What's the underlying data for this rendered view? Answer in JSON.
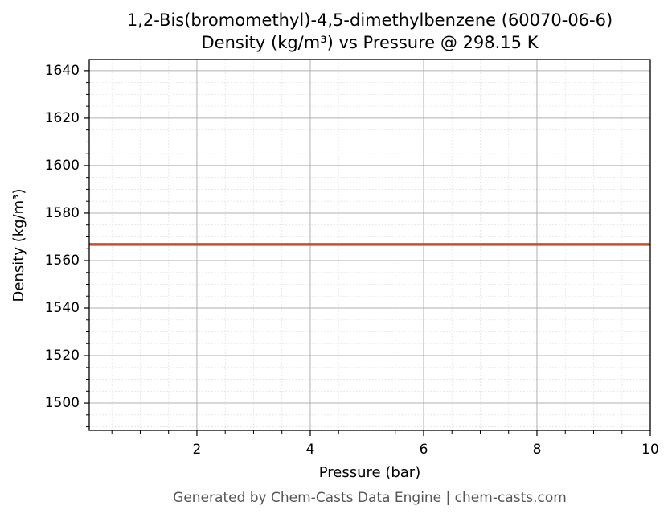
{
  "chart_data": {
    "type": "line",
    "title": "1,2-Bis(bromomethyl)-4,5-dimethylbenzene (60070-06-6)",
    "subtitle": "Density (kg/m³) vs Pressure @ 298.15 K",
    "xlabel": "Pressure (bar)",
    "ylabel": "Density (kg/m³)",
    "footer": "Generated by Chem-Casts Data Engine | chem-casts.com",
    "x": [
      0.1,
      10
    ],
    "series": [
      {
        "name": "Density",
        "color": "#c1552b",
        "values": [
          1566.8,
          1566.8
        ]
      }
    ],
    "xlim": [
      0.1,
      10
    ],
    "ylim": [
      1488.5,
      1644.7
    ],
    "xticks": [
      2,
      4,
      6,
      8,
      10
    ],
    "yticks": [
      1500,
      1520,
      1540,
      1560,
      1580,
      1600,
      1620,
      1640
    ],
    "xminorticks": [
      0.5,
      1,
      1.5,
      2.5,
      3,
      3.5,
      4.5,
      5,
      5.5,
      6.5,
      7,
      7.5,
      8.5,
      9,
      9.5
    ],
    "yminorticks": [
      1490,
      1495,
      1505,
      1510,
      1515,
      1525,
      1530,
      1535,
      1545,
      1550,
      1555,
      1565,
      1570,
      1575,
      1585,
      1590,
      1595,
      1605,
      1610,
      1615,
      1625,
      1630,
      1635
    ],
    "grid": true
  }
}
